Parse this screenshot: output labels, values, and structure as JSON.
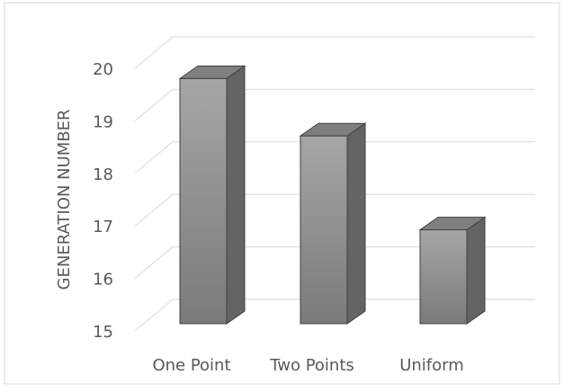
{
  "chart_data": {
    "type": "bar3d",
    "y_label": "GENERATION NUMBER",
    "categories": [
      "One Point",
      "Two Points",
      "Uniform"
    ],
    "values": [
      19.7,
      18.6,
      16.8
    ],
    "color": "#a6a6a6",
    "ylim": [
      15,
      20
    ],
    "yticks": [
      15,
      16,
      17,
      18,
      19,
      20
    ],
    "grid": true
  }
}
